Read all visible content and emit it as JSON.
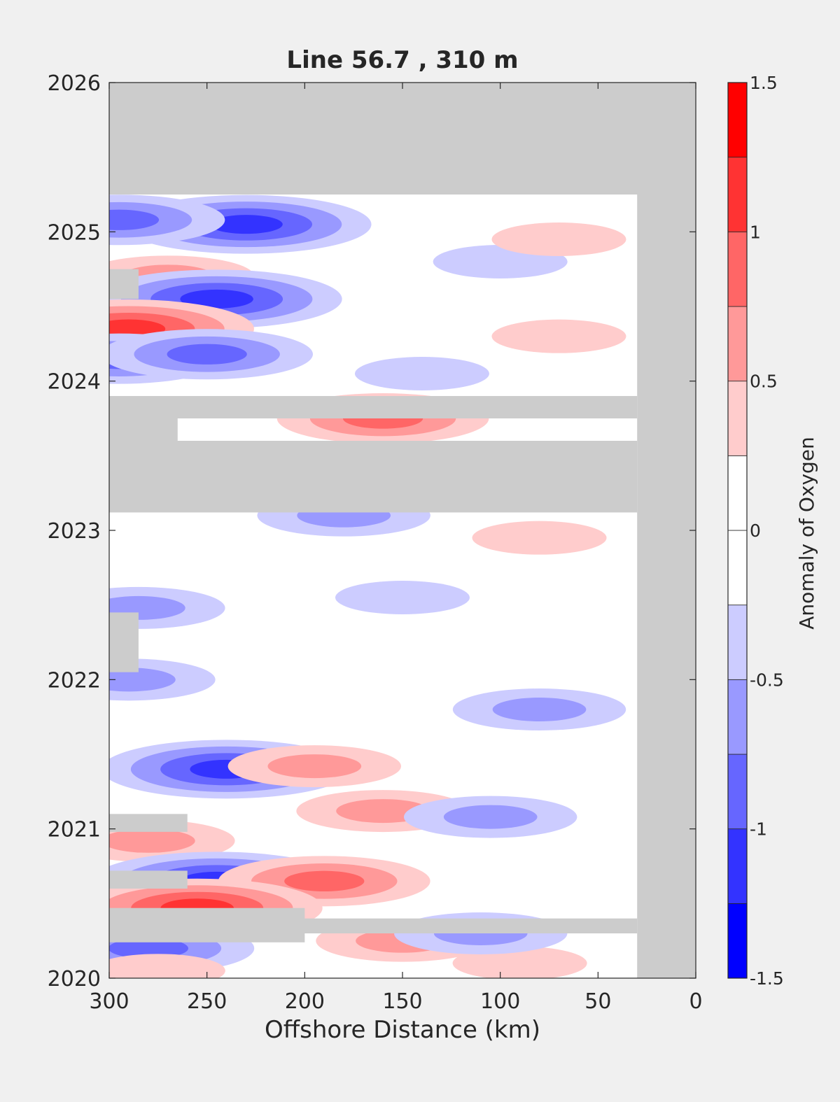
{
  "chart_data": {
    "type": "heatmap",
    "title": "Line 56.7 , 310 m",
    "xlabel": "Offshore Distance (km)",
    "ylabel": "",
    "x_reversed": true,
    "xlim": [
      300,
      0
    ],
    "ylim": [
      2020,
      2026
    ],
    "x_ticks": [
      300,
      250,
      200,
      150,
      100,
      50,
      0
    ],
    "x_tick_labels": [
      "300",
      "250",
      "200",
      "150",
      "100",
      "50",
      "0"
    ],
    "y_ticks": [
      2020,
      2021,
      2022,
      2023,
      2024,
      2025,
      2026
    ],
    "y_tick_labels": [
      "2020",
      "2021",
      "2022",
      "2023",
      "2024",
      "2025",
      "2026"
    ],
    "missing_color": "#cccccc",
    "colorbar": {
      "label": "Anomaly of Oxygen",
      "range": [
        -1.5,
        1.5
      ],
      "levels": [
        -1.5,
        -1.25,
        -1.0,
        -0.75,
        -0.5,
        -0.25,
        0,
        0.25,
        0.5,
        0.75,
        1.0,
        1.25,
        1.5
      ],
      "colors": [
        "#0000ff",
        "#3333ff",
        "#6666ff",
        "#9999ff",
        "#ccccff",
        "#ffffff",
        "#ffffff",
        "#ffcccc",
        "#ff9999",
        "#ff6666",
        "#ff3333",
        "#ff0000"
      ],
      "tick_values": [
        1.5,
        1,
        0.5,
        0,
        -0.5,
        -1,
        -1.5
      ],
      "tick_labels": [
        "1.5",
        "1",
        "0.5",
        "0",
        "-0.5",
        "-1",
        "-1.5"
      ]
    },
    "no_data_regions": [
      {
        "x": [
          300,
          0
        ],
        "y": [
          2025.25,
          2026
        ]
      },
      {
        "x": [
          30,
          0
        ],
        "y": [
          2019.95,
          2025.25
        ]
      },
      {
        "x": [
          300,
          30
        ],
        "y": [
          2023.12,
          2023.6
        ]
      },
      {
        "x": [
          300,
          30
        ],
        "y": [
          2023.75,
          2023.9
        ]
      },
      {
        "x": [
          300,
          265
        ],
        "y": [
          2023.6,
          2023.75
        ]
      },
      {
        "x": [
          300,
          30
        ],
        "y": [
          2020.3,
          2020.4
        ]
      },
      {
        "x": [
          300,
          200
        ],
        "y": [
          2020.24,
          2020.47
        ]
      },
      {
        "x": [
          300,
          285
        ],
        "y": [
          2022.05,
          2022.45
        ]
      },
      {
        "x": [
          300,
          285
        ],
        "y": [
          2024.55,
          2024.75
        ]
      },
      {
        "x": [
          300,
          260
        ],
        "y": [
          2020.6,
          2020.72
        ]
      },
      {
        "x": [
          300,
          260
        ],
        "y": [
          2020.98,
          2021.1
        ]
      }
    ],
    "anomaly_features": [
      {
        "x": 230,
        "y": 2025.05,
        "value": -1.0
      },
      {
        "x": 295,
        "y": 2025.08,
        "value": -0.75
      },
      {
        "x": 270,
        "y": 2024.7,
        "value": 0.5
      },
      {
        "x": 245,
        "y": 2024.55,
        "value": -1.0
      },
      {
        "x": 290,
        "y": 2024.35,
        "value": 1.0
      },
      {
        "x": 295,
        "y": 2024.15,
        "value": -0.75
      },
      {
        "x": 250,
        "y": 2024.18,
        "value": -0.75
      },
      {
        "x": 160,
        "y": 2023.75,
        "value": 0.75
      },
      {
        "x": 140,
        "y": 2024.05,
        "value": -0.25
      },
      {
        "x": 100,
        "y": 2024.8,
        "value": -0.25
      },
      {
        "x": 70,
        "y": 2024.3,
        "value": 0.25
      },
      {
        "x": 70,
        "y": 2024.95,
        "value": 0.25
      },
      {
        "x": 180,
        "y": 2023.1,
        "value": -0.5
      },
      {
        "x": 80,
        "y": 2022.95,
        "value": 0.25
      },
      {
        "x": 285,
        "y": 2022.48,
        "value": -0.5
      },
      {
        "x": 150,
        "y": 2022.55,
        "value": -0.25
      },
      {
        "x": 290,
        "y": 2022.0,
        "value": -0.5
      },
      {
        "x": 80,
        "y": 2021.8,
        "value": -0.5
      },
      {
        "x": 240,
        "y": 2021.4,
        "value": -1.0
      },
      {
        "x": 195,
        "y": 2021.42,
        "value": 0.5
      },
      {
        "x": 160,
        "y": 2021.12,
        "value": 0.5
      },
      {
        "x": 105,
        "y": 2021.08,
        "value": -0.5
      },
      {
        "x": 280,
        "y": 2020.92,
        "value": 0.5
      },
      {
        "x": 245,
        "y": 2020.65,
        "value": -1.0
      },
      {
        "x": 190,
        "y": 2020.65,
        "value": 0.75
      },
      {
        "x": 255,
        "y": 2020.47,
        "value": 1.0
      },
      {
        "x": 150,
        "y": 2020.25,
        "value": 0.5
      },
      {
        "x": 280,
        "y": 2020.2,
        "value": -0.75
      },
      {
        "x": 275,
        "y": 2020.05,
        "value": 0.25
      },
      {
        "x": 90,
        "y": 2020.1,
        "value": 0.25
      },
      {
        "x": 110,
        "y": 2020.3,
        "value": -0.5
      }
    ]
  }
}
